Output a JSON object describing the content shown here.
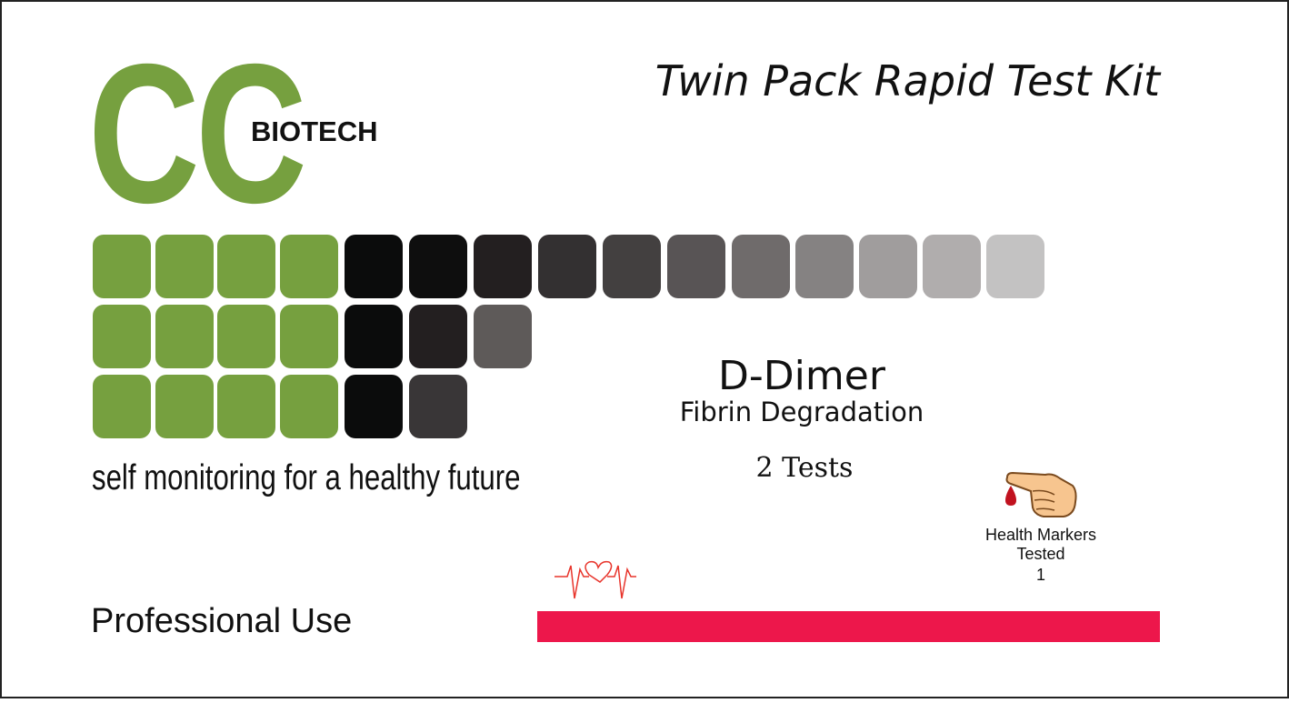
{
  "logo": {
    "mark": "CC",
    "name": "BIOTECH"
  },
  "header": {
    "title": "Twin Pack Rapid Test Kit"
  },
  "tagline": "self monitoring for a healthy future",
  "product": {
    "name": "D-Dimer",
    "subtitle": "Fibrin Degradation",
    "tests": "2 Tests"
  },
  "health_markers": {
    "label": "Health Markers Tested",
    "count": "1"
  },
  "footer": {
    "use": "Professional Use"
  }
}
